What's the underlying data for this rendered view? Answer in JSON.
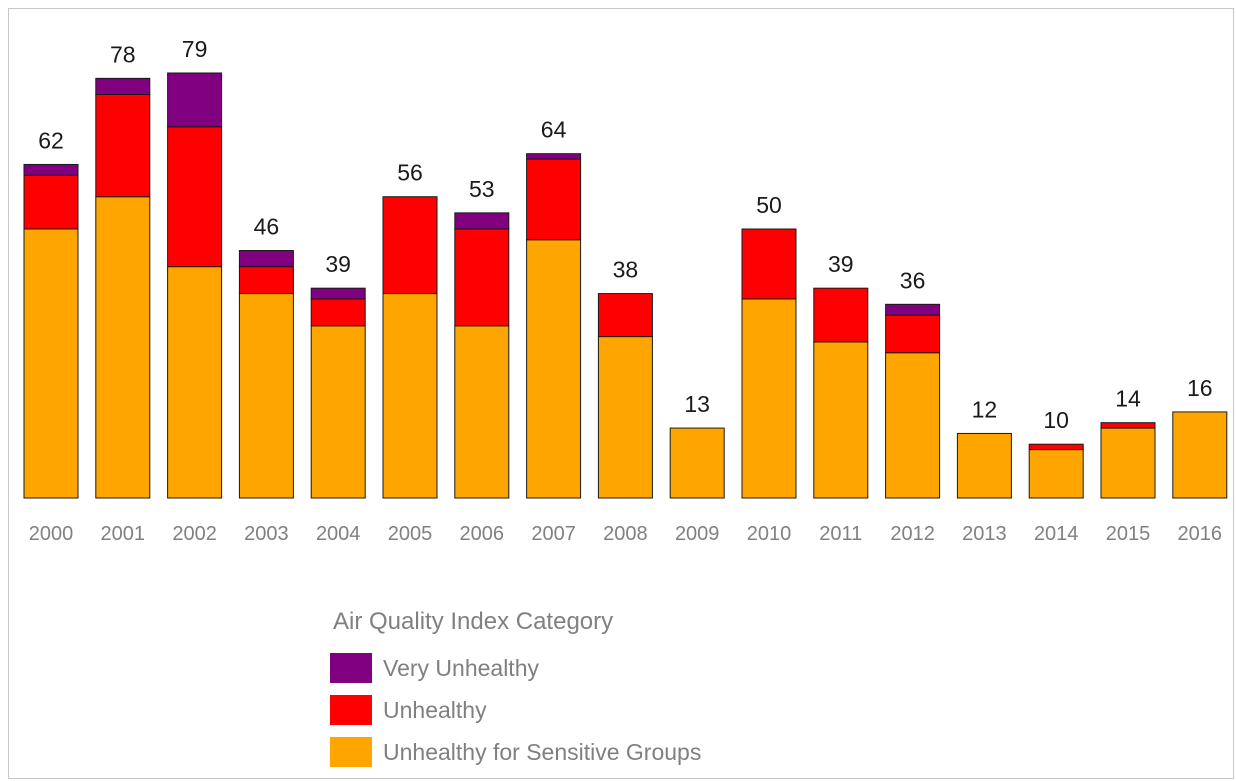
{
  "chart_data": {
    "type": "bar",
    "stacked": true,
    "categories": [
      "2000",
      "2001",
      "2002",
      "2003",
      "2004",
      "2005",
      "2006",
      "2007",
      "2008",
      "2009",
      "2010",
      "2011",
      "2012",
      "2013",
      "2014",
      "2015",
      "2016"
    ],
    "series": [
      {
        "name": "Unhealthy for Sensitive Groups",
        "color": "#FFA500",
        "values": [
          50,
          56,
          43,
          38,
          32,
          38,
          32,
          48,
          30,
          13,
          37,
          29,
          27,
          12,
          9,
          13,
          16
        ]
      },
      {
        "name": "Unhealthy",
        "color": "#FF0000",
        "values": [
          10,
          19,
          26,
          5,
          5,
          18,
          18,
          15,
          8,
          0,
          13,
          10,
          7,
          0,
          1,
          1,
          0
        ]
      },
      {
        "name": "Very Unhealthy",
        "color": "#800080",
        "values": [
          2,
          3,
          10,
          3,
          2,
          0,
          3,
          1,
          0,
          0,
          0,
          0,
          2,
          0,
          0,
          0,
          0
        ]
      }
    ],
    "totals": [
      "62",
      "78",
      "79",
      "46",
      "39",
      "56",
      "53",
      "64",
      "38",
      "13",
      "50",
      "39",
      "36",
      "12",
      "10",
      "14",
      "16"
    ],
    "ylim": [
      0,
      80
    ],
    "grid": false,
    "legend": {
      "title": "Air Quality Index Category",
      "position": "bottom-center",
      "order": [
        "Very Unhealthy",
        "Unhealthy",
        "Unhealthy for Sensitive Groups"
      ]
    }
  }
}
